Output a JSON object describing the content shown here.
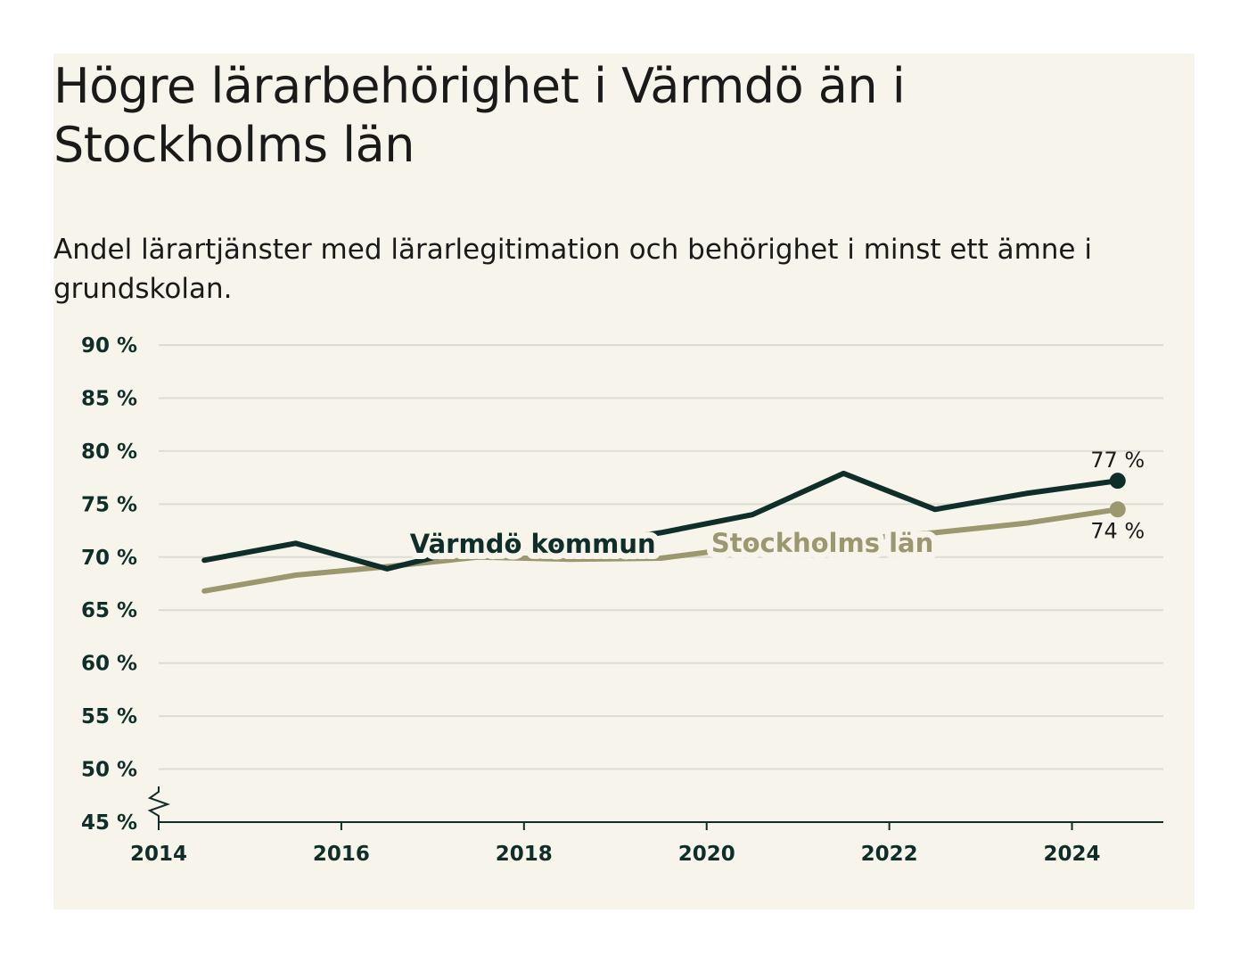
{
  "title": "Högre lärarbehörighet i Värmdö än i Stockholms län",
  "subtitle": "Andel lärartjänster med lärarlegitimation och behörighet i minst ett ämne i grundskolan.",
  "colors": {
    "background": "#f7f5eb",
    "varmdo": "#0f2e2a",
    "stockholm": "#9b9870"
  },
  "chart_data": {
    "type": "line",
    "x": [
      2014.5,
      2015.5,
      2016.5,
      2017.5,
      2018.5,
      2019.5,
      2020.5,
      2021.5,
      2022.5,
      2023.5,
      2024.5
    ],
    "series": [
      {
        "name": "Värmdö kommun",
        "values": [
          69.7,
          71.3,
          68.9,
          71.0,
          71.0,
          72.3,
          74.0,
          77.9,
          74.5,
          76.0,
          77.2
        ],
        "end_label": "77 %"
      },
      {
        "name": "Stockholms län",
        "values": [
          66.8,
          68.3,
          69.1,
          70.0,
          69.8,
          69.9,
          71.0,
          71.6,
          72.3,
          73.2,
          74.5
        ],
        "end_label": "74 %"
      }
    ],
    "xlim": [
      2014,
      2025
    ],
    "ylim": [
      45,
      90
    ],
    "xticks": [
      2014,
      2016,
      2018,
      2020,
      2022,
      2024
    ],
    "xtick_labels": [
      "2014",
      "2016",
      "2018",
      "2020",
      "2022",
      "2024"
    ],
    "yticks": [
      45,
      50,
      55,
      60,
      65,
      70,
      75,
      80,
      85,
      90
    ],
    "ytick_labels": [
      "45 %",
      "50 %",
      "55 %",
      "60 %",
      "65 %",
      "70 %",
      "75 %",
      "80 %",
      "85 %",
      "90 %"
    ],
    "grid": true,
    "axis_break": true
  }
}
